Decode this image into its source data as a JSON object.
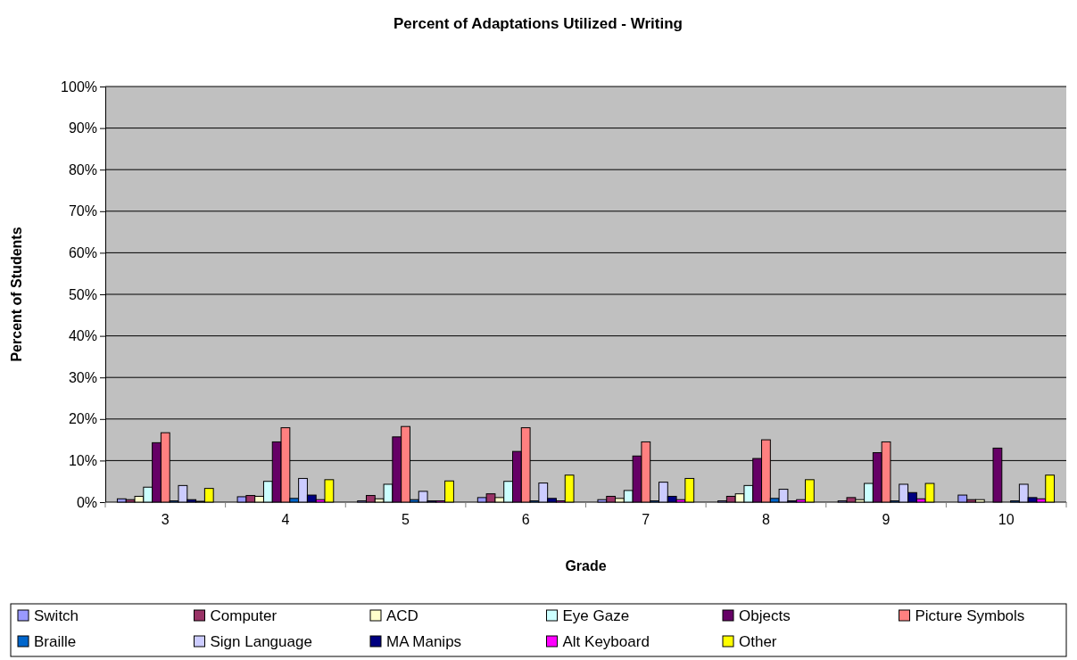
{
  "chart_data": {
    "type": "bar",
    "title": "Percent of Adaptations Utilized - Writing",
    "xlabel": "Grade",
    "ylabel": "Percent of Students",
    "categories": [
      "3",
      "4",
      "5",
      "6",
      "7",
      "8",
      "9",
      "10"
    ],
    "series": [
      {
        "name": "Switch",
        "color": "#9999ff",
        "values": [
          0.8,
          1.3,
          0.3,
          1.1,
          0.6,
          0.3,
          0.3,
          1.7
        ]
      },
      {
        "name": "Computer",
        "color": "#993366",
        "values": [
          0.6,
          1.6,
          1.6,
          2.0,
          1.4,
          1.4,
          1.1,
          0.6
        ]
      },
      {
        "name": "ACD",
        "color": "#ffffcc",
        "values": [
          1.4,
          1.4,
          0.8,
          1.1,
          0.9,
          2.0,
          0.6,
          0.6
        ]
      },
      {
        "name": "Eye Gaze",
        "color": "#ccffff",
        "values": [
          3.6,
          5.0,
          4.3,
          5.0,
          2.8,
          4.0,
          4.5,
          0
        ]
      },
      {
        "name": "Objects",
        "color": "#660066",
        "values": [
          14.3,
          14.5,
          15.7,
          12.2,
          11.1,
          10.5,
          11.9,
          13.0
        ]
      },
      {
        "name": "Picture Symbols",
        "color": "#ff8080",
        "values": [
          16.7,
          17.9,
          18.2,
          17.9,
          14.5,
          15.0,
          14.5,
          0
        ]
      },
      {
        "name": "Braille",
        "color": "#0066cc",
        "values": [
          0.3,
          0.9,
          0.6,
          0.3,
          0.3,
          0.9,
          0.3,
          0.3
        ]
      },
      {
        "name": "Sign Language",
        "color": "#ccccff",
        "values": [
          4.0,
          5.7,
          2.6,
          4.6,
          4.8,
          3.1,
          4.3,
          4.3
        ]
      },
      {
        "name": "MA Manips",
        "color": "#000080",
        "values": [
          0.6,
          1.7,
          0.3,
          0.9,
          1.4,
          0.3,
          2.3,
          1.1
        ]
      },
      {
        "name": "Alt Keyboard",
        "color": "#ff00ff",
        "values": [
          0.2,
          0.6,
          0.3,
          0.3,
          0.6,
          0.6,
          0.8,
          0.8
        ]
      },
      {
        "name": "Other",
        "color": "#ffff00",
        "values": [
          3.3,
          5.4,
          5.1,
          6.5,
          5.7,
          5.4,
          4.5,
          6.5
        ]
      }
    ],
    "ylim": [
      0,
      100
    ],
    "yticks": [
      {
        "value": 0,
        "label": "0%"
      },
      {
        "value": 10,
        "label": "10%"
      },
      {
        "value": 20,
        "label": "20%"
      },
      {
        "value": 30,
        "label": "30%"
      },
      {
        "value": 40,
        "label": "40%"
      },
      {
        "value": 50,
        "label": "50%"
      },
      {
        "value": 60,
        "label": "60%"
      },
      {
        "value": 70,
        "label": "70%"
      },
      {
        "value": 80,
        "label": "80%"
      },
      {
        "value": 90,
        "label": "90%"
      },
      {
        "value": 100,
        "label": "100%"
      }
    ],
    "grid": "y",
    "legend": "bottom"
  }
}
